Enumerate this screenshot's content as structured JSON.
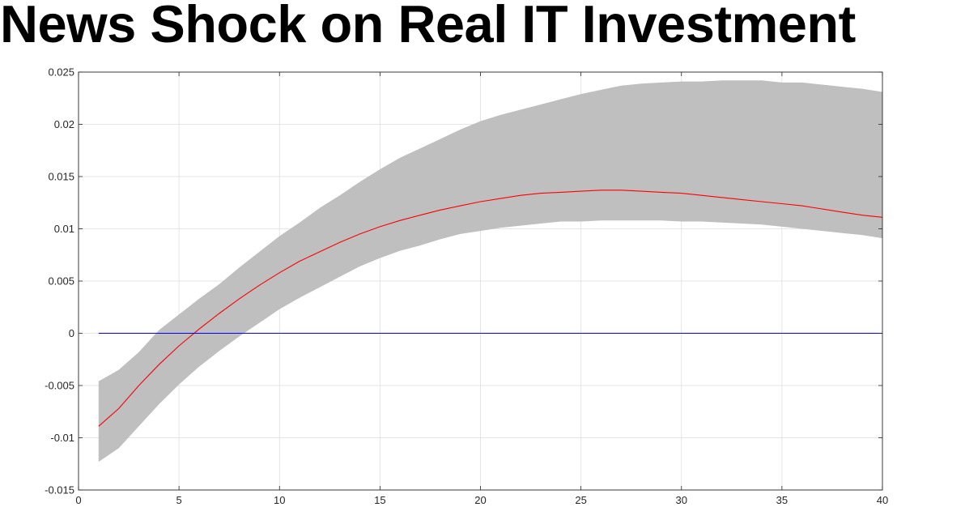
{
  "chart_data": {
    "type": "line",
    "title": "News Shock on Real IT Investment",
    "xlabel": "",
    "ylabel": "",
    "xlim": [
      0,
      40
    ],
    "ylim": [
      -0.015,
      0.025
    ],
    "xticks": [
      "0",
      "5",
      "10",
      "15",
      "20",
      "25",
      "30",
      "35",
      "40"
    ],
    "yticks": [
      "-0.015",
      "-0.01",
      "-0.005",
      "0",
      "0.005",
      "0.01",
      "0.015",
      "0.02",
      "0.025"
    ],
    "grid": true,
    "x": [
      1,
      2,
      3,
      4,
      5,
      6,
      7,
      8,
      9,
      10,
      11,
      12,
      13,
      14,
      15,
      16,
      17,
      18,
      19,
      20,
      21,
      22,
      23,
      24,
      25,
      26,
      27,
      28,
      29,
      30,
      31,
      32,
      33,
      34,
      35,
      36,
      37,
      38,
      39,
      40
    ],
    "series": [
      {
        "role": "response",
        "color": "#ff0000",
        "values": [
          -0.0089,
          -0.0072,
          -0.005,
          -0.003,
          -0.0012,
          0.0004,
          0.0019,
          0.0033,
          0.0046,
          0.0058,
          0.0069,
          0.0078,
          0.0087,
          0.0095,
          0.0102,
          0.0108,
          0.0113,
          0.0118,
          0.0122,
          0.0126,
          0.0129,
          0.0132,
          0.0134,
          0.0135,
          0.0136,
          0.0137,
          0.0137,
          0.0136,
          0.0135,
          0.0134,
          0.0132,
          0.013,
          0.0128,
          0.0126,
          0.0124,
          0.0122,
          0.0119,
          0.0116,
          0.0113,
          0.0111
        ]
      },
      {
        "role": "zero",
        "color": "#0000ff",
        "values": [
          0,
          0,
          0,
          0,
          0,
          0,
          0,
          0,
          0,
          0,
          0,
          0,
          0,
          0,
          0,
          0,
          0,
          0,
          0,
          0,
          0,
          0,
          0,
          0,
          0,
          0,
          0,
          0,
          0,
          0,
          0,
          0,
          0,
          0,
          0,
          0,
          0,
          0,
          0,
          0
        ]
      }
    ],
    "band": {
      "color": "#bfbfbf",
      "lower": [
        -0.0123,
        -0.011,
        -0.0089,
        -0.0068,
        -0.0049,
        -0.0032,
        -0.0017,
        -0.0003,
        0.001,
        0.0023,
        0.0034,
        0.0044,
        0.0054,
        0.0064,
        0.0072,
        0.0079,
        0.0084,
        0.009,
        0.0095,
        0.0098,
        0.0101,
        0.0103,
        0.0105,
        0.0107,
        0.0107,
        0.0108,
        0.0108,
        0.0108,
        0.0108,
        0.0107,
        0.0107,
        0.0106,
        0.0105,
        0.0104,
        0.0102,
        0.01,
        0.0098,
        0.0096,
        0.0094,
        0.0091
      ],
      "upper": [
        -0.0046,
        -0.0035,
        -0.0018,
        0.0003,
        0.0018,
        0.0033,
        0.0047,
        0.0063,
        0.0078,
        0.0093,
        0.0106,
        0.012,
        0.0132,
        0.0145,
        0.0157,
        0.0168,
        0.0177,
        0.0186,
        0.0195,
        0.0203,
        0.0209,
        0.0214,
        0.0219,
        0.0224,
        0.0229,
        0.0233,
        0.0237,
        0.0239,
        0.024,
        0.0241,
        0.0241,
        0.0242,
        0.0242,
        0.0242,
        0.024,
        0.024,
        0.0238,
        0.0236,
        0.0234,
        0.0231
      ]
    }
  }
}
